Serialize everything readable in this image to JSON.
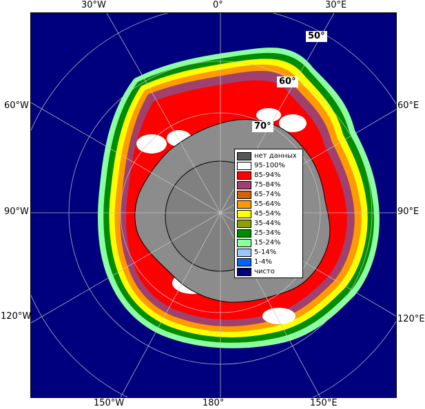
{
  "map": {
    "longitude_labels": {
      "top_w30": "30°W",
      "top_0": "0°",
      "top_e30": "30°E",
      "left_w60": "60°W",
      "left_w90": "90°W",
      "left_w120": "120°W",
      "right_e60": "60°E",
      "right_e90": "90°E",
      "right_e120": "120°E",
      "bottom_w150": "150°W",
      "bottom_180": "180°",
      "bottom_e150": "150°E"
    },
    "latitude_labels": {
      "lat50": "50°",
      "lat60": "60°",
      "lat70": "70°"
    },
    "colors": {
      "ocean": "#00007f",
      "land": "#808080",
      "ice_shelf_no_data": "#8c8c8c",
      "coast_outline": "#000000"
    }
  },
  "legend": {
    "items": [
      {
        "label": "нет данных",
        "color": "#555555"
      },
      {
        "label": "95-100%",
        "color": "#ffffff"
      },
      {
        "label": "85-94%",
        "color": "#ff0000"
      },
      {
        "label": "75-84%",
        "color": "#a0406e"
      },
      {
        "label": "65-74%",
        "color": "#d4620a"
      },
      {
        "label": "55-64%",
        "color": "#ff9b00"
      },
      {
        "label": "45-54%",
        "color": "#ffff00"
      },
      {
        "label": "35-44%",
        "color": "#8ca000"
      },
      {
        "label": "25-34%",
        "color": "#008c00"
      },
      {
        "label": "15-24%",
        "color": "#8cffa0"
      },
      {
        "label": "5-14%",
        "color": "#9ac6ff"
      },
      {
        "label": "1-4%",
        "color": "#0064ff"
      },
      {
        "label": "чисто",
        "color": "#00007f"
      }
    ]
  }
}
